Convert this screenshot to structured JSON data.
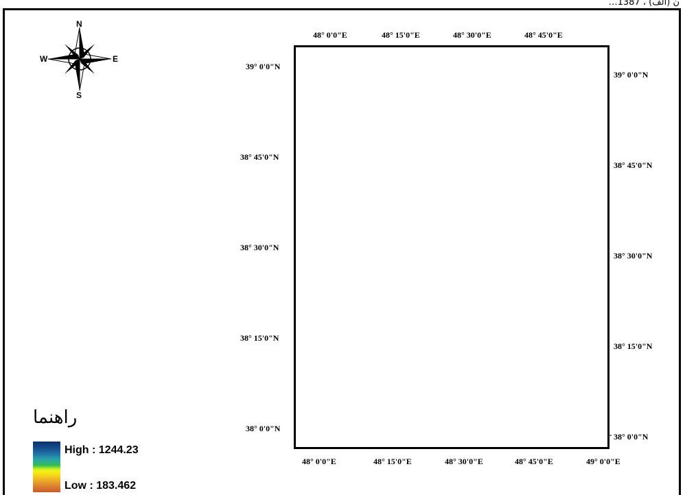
{
  "caption": "…ن (الف) ، 1387",
  "north_arrow": {
    "n": "N",
    "s": "S",
    "e": "E",
    "w": "W"
  },
  "lon_labels_top": [
    "48° 0'0\"E",
    "48° 15'0\"E",
    "48° 30'0\"E",
    "48° 45'0\"E"
  ],
  "lon_labels_bottom": [
    "48° 0'0\"E",
    "48° 15'0\"E",
    "48° 30'0\"E",
    "48° 45'0\"E",
    "49° 0'0\"E"
  ],
  "lat_labels_left": [
    "39° 0'0\"N",
    "38° 45'0\"N",
    "38° 30'0\"N",
    "38° 15'0\"N",
    "38° 0'0\"N"
  ],
  "lat_labels_right": [
    "39° 0'0\"N",
    "38° 45'0\"N",
    "38° 30'0\"N",
    "38° 15'0\"N",
    "38° 0'0\"N"
  ],
  "legend": {
    "title": "راهنما",
    "high_label": "High : 1244.23",
    "low_label": "Low : 183.462",
    "high_value": 1244.23,
    "low_value": 183.462
  },
  "colors": {
    "low": "#c85a2c",
    "mid_low": "#e08c30",
    "mid": "#f2c020",
    "yellow": "#f5f010",
    "green": "#35c050",
    "teal": "#2aa0b0",
    "high": "#08306b"
  }
}
